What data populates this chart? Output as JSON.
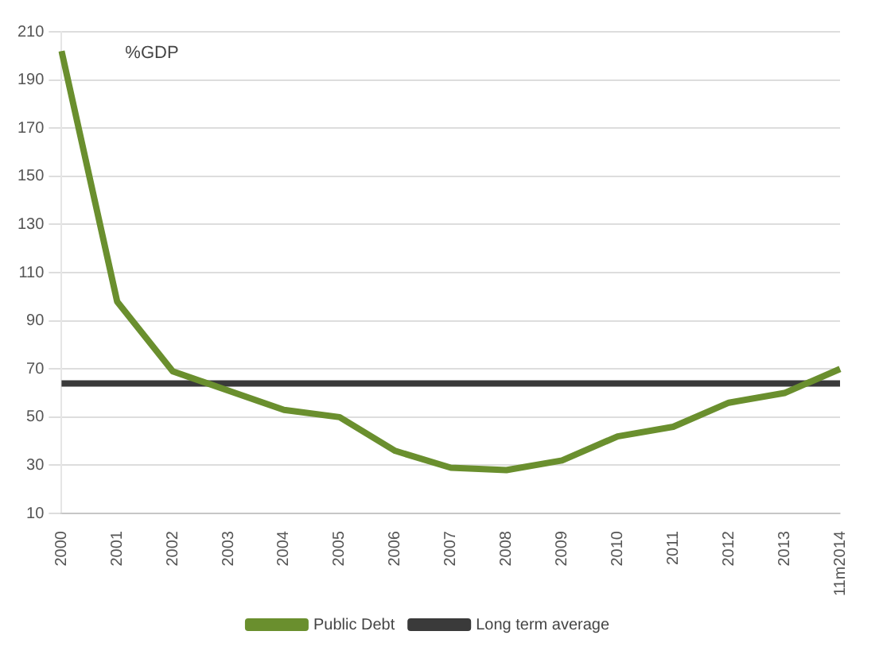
{
  "chart_data": {
    "type": "line",
    "annotations": [
      "%GDP"
    ],
    "categories": [
      "2000",
      "2001",
      "2002",
      "2003",
      "2004",
      "2005",
      "2006",
      "2007",
      "2008",
      "2009",
      "2010",
      "2011",
      "2012",
      "2013",
      "11m2014"
    ],
    "series": [
      {
        "name": "Public Debt",
        "color": "#6a8f2e",
        "values": [
          202,
          98,
          69,
          61,
          53,
          50,
          36,
          29,
          28,
          32,
          42,
          46,
          56,
          60,
          70
        ]
      },
      {
        "name": "Long term average",
        "color": "#3a3a3a",
        "values": [
          64,
          64,
          64,
          64,
          64,
          64,
          64,
          64,
          64,
          64,
          64,
          64,
          64,
          64,
          64
        ]
      }
    ],
    "ylim": [
      10,
      210
    ],
    "yticks": [
      10,
      30,
      50,
      70,
      90,
      110,
      130,
      150,
      170,
      190,
      210
    ],
    "grid": "y",
    "legend": "bottom",
    "marker": "none",
    "line_style": "solid"
  }
}
